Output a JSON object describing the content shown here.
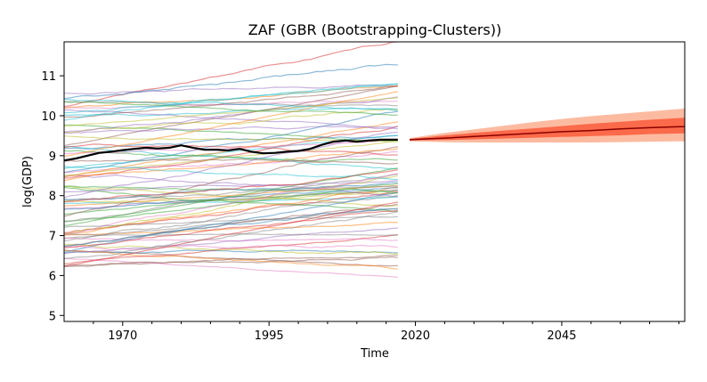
{
  "chart_data": {
    "type": "line",
    "title": "ZAF (GBR (Bootstrapping-Clusters))",
    "xlabel": "Time",
    "ylabel": "log(GDP)",
    "xlim": [
      1960,
      2066
    ],
    "ylim": [
      4.85,
      11.85
    ],
    "xticks": [
      1970,
      1995,
      2020,
      2045
    ],
    "yticks": [
      5,
      6,
      7,
      8,
      9,
      10,
      11
    ],
    "grid": false,
    "background_series_count": 80,
    "historical_range": [
      1960,
      2017
    ],
    "historical_mean": {
      "x": [
        1960,
        1962,
        1964,
        1966,
        1968,
        1970,
        1972,
        1974,
        1976,
        1978,
        1980,
        1982,
        1984,
        1986,
        1988,
        1990,
        1992,
        1994,
        1996,
        1998,
        2000,
        2002,
        2004,
        2006,
        2008,
        2010,
        2012,
        2014,
        2016,
        2017
      ],
      "y": [
        8.88,
        8.93,
        9.0,
        9.07,
        9.1,
        9.14,
        9.17,
        9.2,
        9.18,
        9.2,
        9.26,
        9.2,
        9.15,
        9.15,
        9.13,
        9.17,
        9.1,
        9.06,
        9.07,
        9.1,
        9.12,
        9.17,
        9.27,
        9.35,
        9.38,
        9.35,
        9.38,
        9.4,
        9.4,
        9.4
      ]
    },
    "forecast": {
      "x": [
        2019,
        2025,
        2030,
        2035,
        2040,
        2045,
        2050,
        2055,
        2060,
        2066
      ],
      "median": [
        9.4,
        9.44,
        9.48,
        9.52,
        9.56,
        9.6,
        9.63,
        9.67,
        9.7,
        9.73
      ],
      "inner_low": [
        9.38,
        9.39,
        9.41,
        9.43,
        9.45,
        9.47,
        9.49,
        9.51,
        9.54,
        9.56
      ],
      "inner_high": [
        9.42,
        9.51,
        9.57,
        9.63,
        9.68,
        9.74,
        9.8,
        9.85,
        9.9,
        9.95
      ],
      "outer_low": [
        9.36,
        9.34,
        9.33,
        9.33,
        9.33,
        9.33,
        9.33,
        9.34,
        9.35,
        9.36
      ],
      "outer_high": [
        9.44,
        9.57,
        9.66,
        9.75,
        9.84,
        9.92,
        9.99,
        10.05,
        10.11,
        10.18
      ]
    },
    "colors": {
      "mean": "#000000",
      "forecast_line": "#8b0000",
      "inner_band": "#fb6a4a",
      "outer_band": "#fcbba1",
      "palette": [
        "#1f77b4",
        "#ff7f0e",
        "#2ca02c",
        "#d62728",
        "#9467bd",
        "#8c564b",
        "#e377c2",
        "#7f7f7f",
        "#bcbd22",
        "#17becf"
      ]
    }
  }
}
